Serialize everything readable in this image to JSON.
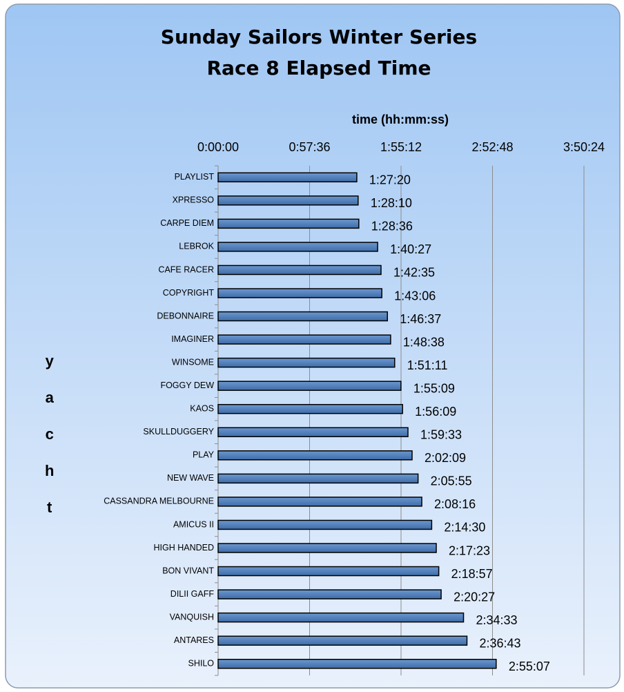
{
  "chart_data": {
    "type": "bar",
    "orientation": "horizontal",
    "title": [
      "Sunday Sailors Winter Series",
      "Race 8 Elapsed Time"
    ],
    "x_label": "time (hh:mm:ss)",
    "y_label": "yacht",
    "categories": [
      "PLAYLIST",
      "XPRESSO",
      "CARPE DIEM",
      "LEBROK",
      "CAFE RACER",
      "COPYRIGHT",
      "DEBONNAIRE",
      "IMAGINER",
      "WINSOME",
      "FOGGY DEW",
      "KAOS",
      "SKULLDUGGERY",
      "PLAY",
      "NEW WAVE",
      "CASSANDRA MELBOURNE",
      "AMICUS II",
      "HIGH HANDED",
      "BON VIVANT",
      "DILII GAFF",
      "VANQUISH",
      "ANTARES",
      "SHILO"
    ],
    "values": [
      5240,
      5290,
      5316,
      6027,
      6155,
      6186,
      6397,
      6518,
      6671,
      6909,
      6969,
      7173,
      7329,
      7555,
      7696,
      8070,
      8243,
      8337,
      8427,
      9273,
      9403,
      10507
    ],
    "value_labels": [
      "1:27:20",
      "1:28:10",
      "1:28:36",
      "1:40:27",
      "1:42:35",
      "1:43:06",
      "1:46:37",
      "1:48:38",
      "1:51:11",
      "1:55:09",
      "1:56:09",
      "1:59:33",
      "2:02:09",
      "2:05:55",
      "2:08:16",
      "2:14:30",
      "2:17:23",
      "2:18:57",
      "2:20:27",
      "2:34:33",
      "2:36:43",
      "2:55:07"
    ],
    "color": "#4f81bd",
    "xlim": [
      0,
      13824
    ],
    "xticks": [
      {
        "value": 0,
        "label": "0:00:00"
      },
      {
        "value": 3456,
        "label": "0:57:36"
      },
      {
        "value": 6912,
        "label": "1:55:12"
      },
      {
        "value": 10368,
        "label": "2:52:48"
      },
      {
        "value": 13824,
        "label": "3:50:24"
      }
    ],
    "grid": true
  }
}
